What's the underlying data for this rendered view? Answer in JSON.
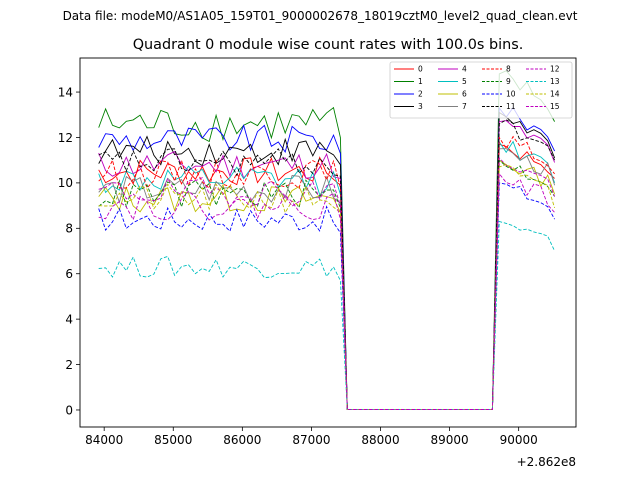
{
  "figure": {
    "suptitle": "Data file: modeM0/AS1A05_159T01_9000002678_18019cztM0_level2_quad_clean.evt"
  },
  "chart_data": {
    "type": "line",
    "title": "Quadrant 0 module wise count rates with 100.0s bins.",
    "xlabel": "",
    "ylabel": "",
    "x_offset_label": "+2.862e8",
    "xlim": [
      83650,
      90830
    ],
    "ylim": [
      -0.75,
      15.5
    ],
    "xticks": [
      84000,
      85000,
      86000,
      87000,
      88000,
      89000,
      90000
    ],
    "xtick_labels": [
      "84000",
      "85000",
      "86000",
      "87000",
      "88000",
      "89000",
      "90000"
    ],
    "yticks": [
      0,
      2,
      4,
      6,
      8,
      10,
      12,
      14
    ],
    "ytick_labels": [
      "0",
      "2",
      "4",
      "6",
      "8",
      "10",
      "12",
      "14"
    ],
    "grid": false,
    "legend_location": "top-right",
    "x_segments": [
      {
        "start": 83920,
        "end": 87520,
        "step": 100
      },
      {
        "start": 87520,
        "end": 89620,
        "step": 2100
      },
      {
        "start": 89620,
        "end": 90520,
        "step": 100
      }
    ],
    "series": [
      {
        "name": "0",
        "color": "#ff0000",
        "dash": "solid",
        "mean": 10.5,
        "amp": 0.4,
        "gap_end": 11.7,
        "final": 10.2
      },
      {
        "name": "1",
        "color": "#008000",
        "dash": "solid",
        "mean": 12.6,
        "amp": 0.5,
        "gap_end": 14.8,
        "final": 12.7
      },
      {
        "name": "2",
        "color": "#0000ff",
        "dash": "solid",
        "mean": 11.9,
        "amp": 0.4,
        "gap_end": 13.3,
        "final": 11.4
      },
      {
        "name": "3",
        "color": "#000000",
        "dash": "solid",
        "mean": 11.4,
        "amp": 0.4,
        "gap_end": 13.1,
        "final": 11.1
      },
      {
        "name": "4",
        "color": "#bf00bf",
        "dash": "solid",
        "mean": 10.8,
        "amp": 0.4,
        "gap_end": 12.7,
        "final": 10.9
      },
      {
        "name": "5",
        "color": "#00bfbf",
        "dash": "solid",
        "mean": 10.1,
        "amp": 0.4,
        "gap_end": 11.8,
        "final": 10.0
      },
      {
        "name": "6",
        "color": "#bfbf00",
        "dash": "solid",
        "mean": 9.3,
        "amp": 0.4,
        "gap_end": 11.0,
        "final": 9.5
      },
      {
        "name": "7",
        "color": "#808080",
        "dash": "solid",
        "mean": 9.7,
        "amp": 0.4,
        "gap_end": 11.5,
        "final": 9.9
      },
      {
        "name": "8",
        "color": "#ff0000",
        "dash": "dashed",
        "mean": 10.4,
        "amp": 0.4,
        "gap_end": 12.0,
        "final": 10.4
      },
      {
        "name": "9",
        "color": "#008000",
        "dash": "dashed",
        "mean": 9.5,
        "amp": 0.4,
        "gap_end": 11.0,
        "final": 9.4
      },
      {
        "name": "10",
        "color": "#0000ff",
        "dash": "dashed",
        "mean": 8.4,
        "amp": 0.35,
        "gap_end": 10.0,
        "final": 8.4
      },
      {
        "name": "11",
        "color": "#000000",
        "dash": "dashed",
        "mean": 10.9,
        "amp": 0.4,
        "gap_end": 12.6,
        "final": 11.0
      },
      {
        "name": "12",
        "color": "#bf00bf",
        "dash": "dashed",
        "mean": 9.6,
        "amp": 0.4,
        "gap_end": 11.1,
        "final": 9.4
      },
      {
        "name": "13",
        "color": "#00bfbf",
        "dash": "dashed",
        "mean": 6.3,
        "amp": 0.3,
        "gap_end": 8.3,
        "final": 7.0
      },
      {
        "name": "14",
        "color": "#bfbf00",
        "dash": "dashed",
        "mean": 9.3,
        "amp": 0.4,
        "gap_end": 10.7,
        "final": 8.9
      },
      {
        "name": "15",
        "color": "#bf00bf",
        "dash": "dashed",
        "mean": 9.0,
        "amp": 0.4,
        "gap_end": 10.4,
        "final": 8.7
      }
    ]
  }
}
